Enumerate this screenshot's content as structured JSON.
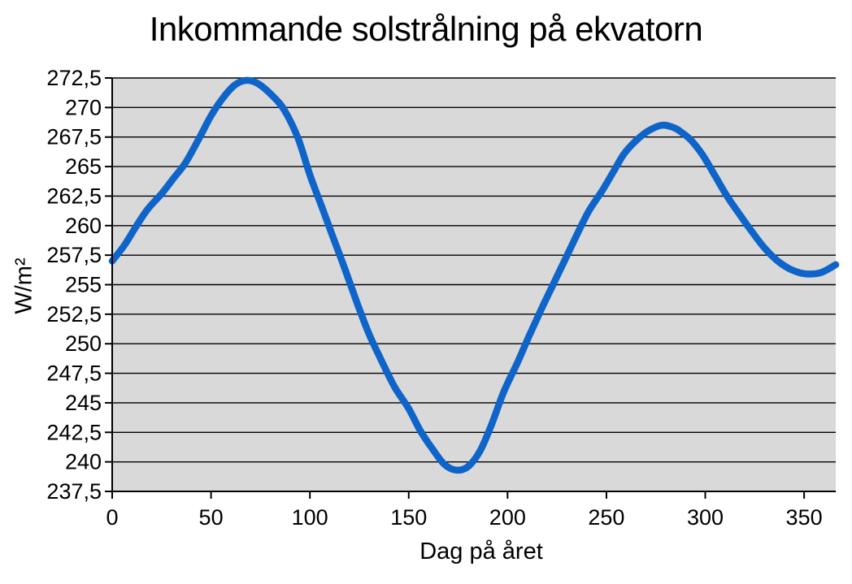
{
  "chart_data": {
    "type": "line",
    "title": "Inkommande solstrålning på ekvatorn",
    "xlabel": "Dag på året",
    "ylabel": "W/m²",
    "xlim": [
      0,
      366
    ],
    "ylim": [
      237.5,
      272.5
    ],
    "grid": "horizontal-only",
    "legend": "none",
    "plot_bg_color": "#d9d9d9",
    "grid_color": "#000000",
    "axis_color": "#000000",
    "line_color": "#0e64c8",
    "line_width": 8.5,
    "xticks": [
      0,
      50,
      100,
      150,
      200,
      250,
      300,
      350
    ],
    "xtick_labels": [
      "0",
      "50",
      "100",
      "150",
      "200",
      "250",
      "300",
      "350"
    ],
    "ytick_values": [
      237.5,
      240,
      242.5,
      245,
      247.5,
      250,
      252.5,
      255,
      257.5,
      260,
      262.5,
      265,
      267.5,
      270,
      272.5
    ],
    "ytick_labels": [
      "237,5",
      "240",
      "242,5",
      "245",
      "247,5",
      "250",
      "252,5",
      "255",
      "257,5",
      "260",
      "262,5",
      "265",
      "267,5",
      "270",
      "272,5"
    ],
    "series": [
      {
        "x": [
          0,
          6,
          12,
          18,
          25,
          31,
          37,
          44,
          50,
          56,
          62,
          68,
          74,
          81,
          87,
          94,
          100,
          106,
          112,
          118,
          124,
          130,
          137,
          143,
          150,
          156,
          162,
          168,
          174,
          180,
          186,
          192,
          198,
          205,
          211,
          217,
          223,
          229,
          235,
          241,
          248,
          254,
          259,
          265,
          271,
          278,
          284,
          288,
          293,
          299,
          305,
          311,
          318,
          324,
          330,
          336,
          342,
          348,
          353,
          358,
          362,
          366
        ],
        "y": [
          257.0,
          258.3,
          259.9,
          261.4,
          262.7,
          264.0,
          265.3,
          267.4,
          269.3,
          270.8,
          271.9,
          272.3,
          272.0,
          271.0,
          269.8,
          267.4,
          264.3,
          261.6,
          258.9,
          256.2,
          253.4,
          250.8,
          248.3,
          246.3,
          244.5,
          242.6,
          241.1,
          239.8,
          239.3,
          239.6,
          240.9,
          243.2,
          245.9,
          248.4,
          250.7,
          252.9,
          255.0,
          257.1,
          259.2,
          261.2,
          263.0,
          264.7,
          266.1,
          267.2,
          268.0,
          268.5,
          268.3,
          267.9,
          267.2,
          265.9,
          264.2,
          262.5,
          260.8,
          259.4,
          258.1,
          257.1,
          256.4,
          256.0,
          255.9,
          256.0,
          256.3,
          256.7
        ]
      }
    ]
  }
}
